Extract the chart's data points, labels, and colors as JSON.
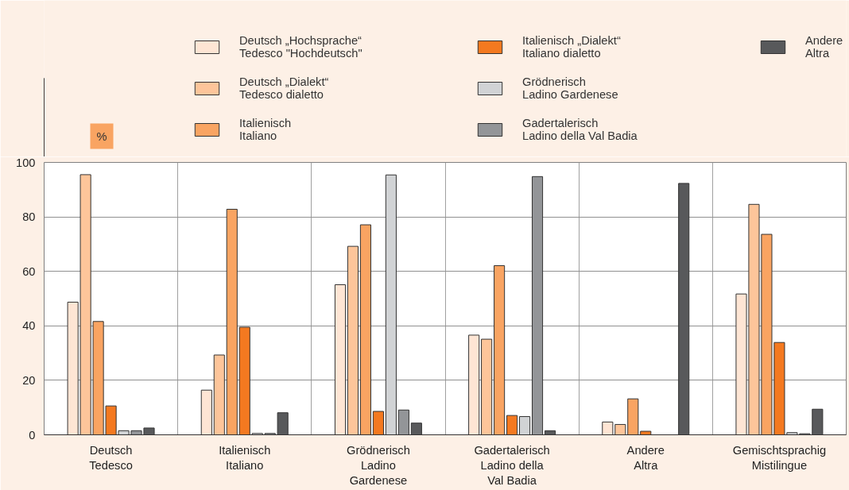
{
  "chart_data": {
    "type": "bar",
    "ylabel": "%",
    "categories": [
      "Deutsch\nTedesco",
      "Italienisch\nItaliano",
      "Grödnerisch\nLadino\nGardenese",
      "Gadertalerisch\nLadino della\nVal Badia",
      "Andere\nAltra",
      "Gemischtsprachig\nMistilingue"
    ],
    "series": [
      {
        "name": "Deutsch „Hochsprache“\nTedesco \"Hochdeutsch\"",
        "color": "#fee5d4",
        "values": [
          48.7,
          16.4,
          55.1,
          36.6,
          4.7,
          51.7
        ]
      },
      {
        "name": "Deutsch „Dialekt“\nTedesco dialetto",
        "color": "#fdc59a",
        "values": [
          95.5,
          29.3,
          69.2,
          35.1,
          3.8,
          84.6
        ]
      },
      {
        "name": "Italienisch\nItaliano",
        "color": "#f9a462",
        "values": [
          41.6,
          82.8,
          77.1,
          62.1,
          13.2,
          73.6
        ]
      },
      {
        "name": "Italienisch „Dialekt“\nItaliano dialetto",
        "color": "#f47920",
        "values": [
          10.6,
          39.5,
          8.6,
          7.1,
          1.3,
          33.9
        ]
      },
      {
        "name": "Grödnerisch\nLadino Gardenese",
        "color": "#d1d3d5",
        "values": [
          1.5,
          0.5,
          95.4,
          6.7,
          null,
          0.8
        ]
      },
      {
        "name": "Gadertalerisch\nLadino della Val Badia",
        "color": "#939598",
        "values": [
          1.5,
          0.5,
          9.1,
          94.8,
          null,
          0.4
        ]
      },
      {
        "name": "Andere\nAltra",
        "color": "#58595b",
        "values": [
          2.5,
          8.1,
          4.3,
          1.5,
          92.3,
          9.4
        ]
      }
    ],
    "ylim": [
      0,
      100
    ],
    "yticks": [
      0,
      20,
      40,
      60,
      80,
      100
    ],
    "grid": true,
    "legend": "top"
  }
}
